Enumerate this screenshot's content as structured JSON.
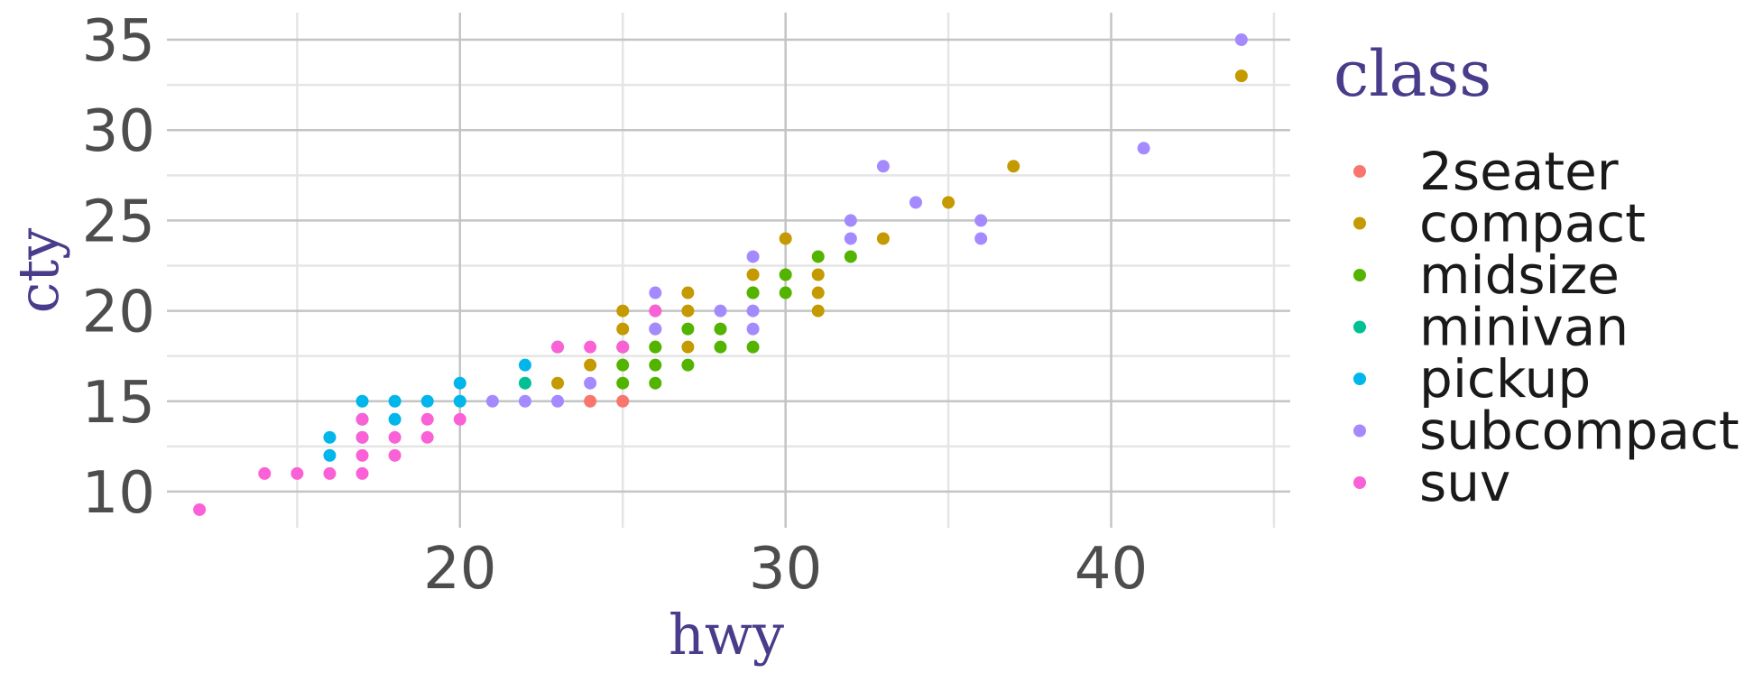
{
  "chart_data": {
    "type": "scatter",
    "xlabel": "hwy",
    "ylabel": "cty",
    "xlim": [
      11,
      45.5
    ],
    "ylim": [
      8,
      36.5
    ],
    "x_ticks": [
      20,
      30,
      40
    ],
    "y_ticks": [
      10,
      15,
      20,
      25,
      30,
      35
    ],
    "grid": true,
    "legend": {
      "title": "class",
      "placement": "right"
    },
    "series": [
      {
        "name": "2seater",
        "color": "#F8766D",
        "points": [
          [
            24,
            15
          ],
          [
            25,
            15
          ]
        ]
      },
      {
        "name": "compact",
        "color": "#C49A00",
        "points": [
          [
            44,
            33
          ],
          [
            37,
            28
          ],
          [
            35,
            26
          ],
          [
            33,
            24
          ],
          [
            31,
            22
          ],
          [
            31,
            21
          ],
          [
            31,
            20
          ],
          [
            30,
            24
          ],
          [
            29,
            22
          ],
          [
            29,
            21
          ],
          [
            27,
            21
          ],
          [
            27,
            20
          ],
          [
            27,
            18
          ],
          [
            26,
            20
          ],
          [
            26,
            19
          ],
          [
            26,
            18
          ],
          [
            25,
            20
          ],
          [
            25,
            19
          ],
          [
            25,
            18
          ],
          [
            24,
            17
          ],
          [
            23,
            16
          ]
        ]
      },
      {
        "name": "midsize",
        "color": "#53B400",
        "points": [
          [
            32,
            23
          ],
          [
            31,
            23
          ],
          [
            30,
            22
          ],
          [
            30,
            21
          ],
          [
            29,
            21
          ],
          [
            29,
            18
          ],
          [
            28,
            19
          ],
          [
            28,
            18
          ],
          [
            27,
            19
          ],
          [
            27,
            17
          ],
          [
            26,
            18
          ],
          [
            26,
            17
          ],
          [
            26,
            16
          ],
          [
            25,
            18
          ],
          [
            25,
            17
          ],
          [
            25,
            16
          ]
        ]
      },
      {
        "name": "minivan",
        "color": "#00C094",
        "points": [
          [
            22,
            16
          ],
          [
            23,
            18
          ]
        ]
      },
      {
        "name": "pickup",
        "color": "#00B6EB",
        "points": [
          [
            22,
            17
          ],
          [
            20,
            16
          ],
          [
            20,
            15
          ],
          [
            19,
            15
          ],
          [
            18,
            15
          ],
          [
            18,
            14
          ],
          [
            17,
            15
          ],
          [
            17,
            14
          ],
          [
            16,
            13
          ],
          [
            16,
            12
          ],
          [
            17,
            13
          ]
        ]
      },
      {
        "name": "subcompact",
        "color": "#A58AFF",
        "points": [
          [
            44,
            35
          ],
          [
            41,
            29
          ],
          [
            36,
            25
          ],
          [
            36,
            24
          ],
          [
            34,
            26
          ],
          [
            33,
            28
          ],
          [
            32,
            25
          ],
          [
            32,
            24
          ],
          [
            29,
            23
          ],
          [
            29,
            20
          ],
          [
            29,
            19
          ],
          [
            28,
            20
          ],
          [
            26,
            21
          ],
          [
            26,
            19
          ],
          [
            24,
            16
          ],
          [
            23,
            15
          ],
          [
            22,
            15
          ],
          [
            21,
            15
          ]
        ]
      },
      {
        "name": "suv",
        "color": "#FB61D7",
        "points": [
          [
            12,
            9
          ],
          [
            14,
            11
          ],
          [
            15,
            11
          ],
          [
            16,
            11
          ],
          [
            17,
            11
          ],
          [
            17,
            12
          ],
          [
            17,
            13
          ],
          [
            17,
            14
          ],
          [
            18,
            12
          ],
          [
            18,
            13
          ],
          [
            19,
            13
          ],
          [
            19,
            14
          ],
          [
            20,
            14
          ],
          [
            23,
            18
          ],
          [
            24,
            18
          ],
          [
            25,
            18
          ],
          [
            26,
            20
          ]
        ]
      }
    ]
  }
}
